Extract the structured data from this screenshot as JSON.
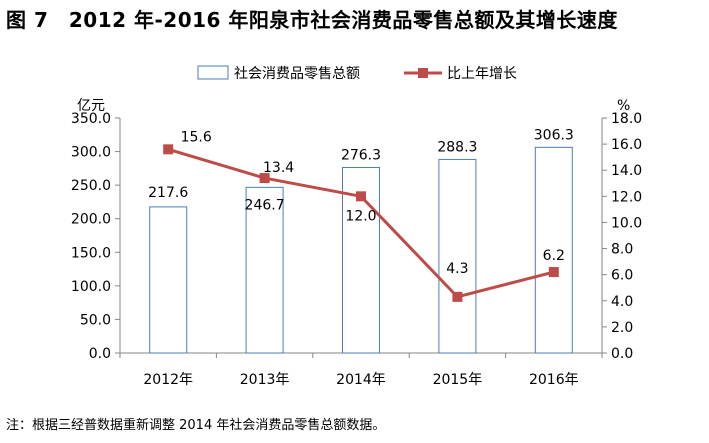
{
  "figure_title": "图 7　2012 年-2016 年阳泉市社会消费品零售总额及其增长速度",
  "note": "注：根据三经普数据重新调整 2014 年社会消费品零售总额数据。",
  "colors": {
    "bar_stroke": "#4A7EBB",
    "bar_fill": "#FFFFFF",
    "line": "#BE4B48",
    "marker": "#BE4B48"
  },
  "chart_data": {
    "type": "bar",
    "categories": [
      "2012年",
      "2013年",
      "2014年",
      "2015年",
      "2016年"
    ],
    "series": [
      {
        "name": "社会消费品零售总额",
        "type": "bar",
        "axis": "left",
        "values": [
          217.6,
          246.7,
          276.3,
          288.3,
          306.3
        ],
        "labels": [
          "217.6",
          "246.7",
          "276.3",
          "288.3",
          "306.3"
        ]
      },
      {
        "name": "比上年增长",
        "type": "line",
        "axis": "right",
        "values": [
          15.6,
          13.4,
          12.0,
          4.3,
          6.2
        ],
        "labels": [
          "15.6",
          "13.4",
          "12.0",
          "4.3",
          "6.2"
        ]
      }
    ],
    "y_left": {
      "label": "亿元",
      "range": [
        0,
        350
      ],
      "ticks": [
        "0.0",
        "50.0",
        "100.0",
        "150.0",
        "200.0",
        "250.0",
        "300.0",
        "350.0"
      ]
    },
    "y_right": {
      "label": "%",
      "range": [
        0,
        18
      ],
      "ticks": [
        "0.0",
        "2.0",
        "4.0",
        "6.0",
        "8.0",
        "10.0",
        "12.0",
        "14.0",
        "16.0",
        "18.0"
      ]
    },
    "legend": {
      "position": "top"
    },
    "grid": false
  }
}
